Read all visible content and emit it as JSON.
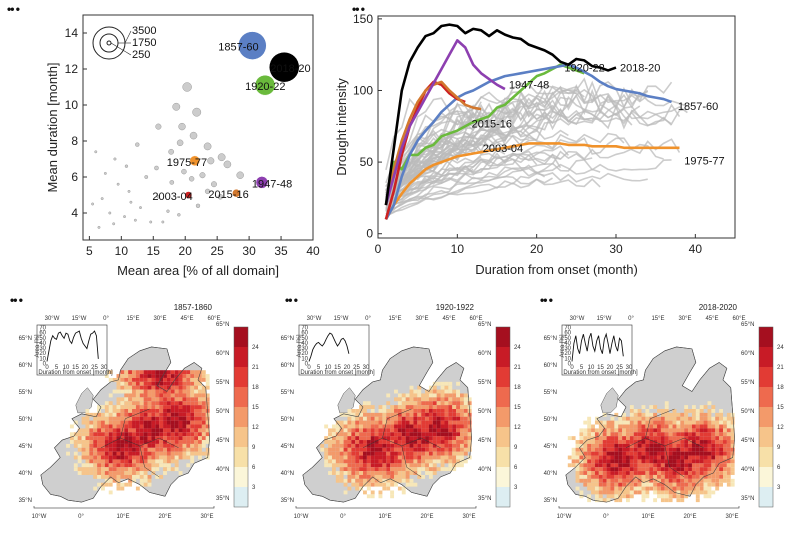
{
  "panel_labels": [
    "•• •",
    "•• •",
    "•• •",
    "•• •",
    "•• •"
  ],
  "chart_data": [
    {
      "type": "scatter",
      "xlabel": "Mean area [% of all domain]",
      "ylabel": "Mean duration [month]",
      "xlim": [
        4,
        40
      ],
      "ylim": [
        2.5,
        15
      ],
      "xticks": [
        "5",
        "10",
        "15",
        "20",
        "25",
        "30",
        "35",
        "40"
      ],
      "yticks": [
        "4",
        "6",
        "8",
        "10",
        "12",
        "14"
      ],
      "size_legend": [
        "3500",
        "1750",
        "250"
      ],
      "highlighted": [
        {
          "label": "1857-60",
          "x": 30.5,
          "y": 13.3,
          "color": "#5b7fc4"
        },
        {
          "label": "2018-20",
          "x": 35.5,
          "y": 12.1,
          "color": "#000000"
        },
        {
          "label": "1920-22",
          "x": 32.5,
          "y": 11.1,
          "color": "#6aba3c"
        },
        {
          "label": "1975-77",
          "x": 21.5,
          "y": 6.9,
          "color": "#f0922b"
        },
        {
          "label": "1947-48",
          "x": 32.0,
          "y": 5.7,
          "color": "#8d3fb0"
        },
        {
          "label": "2003-04",
          "x": 20.5,
          "y": 5.0,
          "color": "#cc2222"
        },
        {
          "label": "2015-16",
          "x": 28.0,
          "y": 5.1,
          "color": "#d2782e"
        }
      ],
      "background_points": [
        {
          "x": 20.3,
          "y": 11.0
        },
        {
          "x": 21.8,
          "y": 9.6
        },
        {
          "x": 19.5,
          "y": 8.8
        },
        {
          "x": 21.3,
          "y": 8.3
        },
        {
          "x": 19.2,
          "y": 7.9
        },
        {
          "x": 23.5,
          "y": 7.7
        },
        {
          "x": 17.8,
          "y": 7.4
        },
        {
          "x": 25.7,
          "y": 7.1
        },
        {
          "x": 19.8,
          "y": 6.3
        },
        {
          "x": 22.7,
          "y": 6.1
        },
        {
          "x": 28.6,
          "y": 6.1
        },
        {
          "x": 24.5,
          "y": 5.6
        },
        {
          "x": 15.8,
          "y": 8.8
        },
        {
          "x": 15.5,
          "y": 6.5
        },
        {
          "x": 13.9,
          "y": 6.0
        },
        {
          "x": 17.9,
          "y": 5.7
        },
        {
          "x": 21.0,
          "y": 5.9
        },
        {
          "x": 23.5,
          "y": 5.2
        },
        {
          "x": 25.5,
          "y": 4.9
        },
        {
          "x": 12.5,
          "y": 7.8
        },
        {
          "x": 11.2,
          "y": 5.2
        },
        {
          "x": 13.0,
          "y": 4.3
        },
        {
          "x": 15.8,
          "y": 4.9
        },
        {
          "x": 17.3,
          "y": 4.1
        },
        {
          "x": 19.0,
          "y": 3.9
        },
        {
          "x": 8.2,
          "y": 4.0
        },
        {
          "x": 9.5,
          "y": 5.6
        },
        {
          "x": 10.5,
          "y": 3.8
        },
        {
          "x": 7.0,
          "y": 4.8
        },
        {
          "x": 6.5,
          "y": 3.2
        },
        {
          "x": 8.8,
          "y": 3.4
        },
        {
          "x": 12.2,
          "y": 3.6
        },
        {
          "x": 14.6,
          "y": 3.5
        },
        {
          "x": 16.5,
          "y": 3.5
        },
        {
          "x": 6.0,
          "y": 7.4
        },
        {
          "x": 7.5,
          "y": 6.2
        },
        {
          "x": 9.0,
          "y": 7.0
        },
        {
          "x": 10.8,
          "y": 6.6
        },
        {
          "x": 5.5,
          "y": 4.5
        },
        {
          "x": 11.5,
          "y": 4.6
        },
        {
          "x": 18.6,
          "y": 9.9
        },
        {
          "x": 24.0,
          "y": 6.9
        },
        {
          "x": 22.0,
          "y": 4.4
        },
        {
          "x": 26.6,
          "y": 6.7
        }
      ]
    },
    {
      "type": "line",
      "xlabel": "Duration from onset (month)",
      "ylabel": "Drought intensity",
      "xlim": [
        0,
        45
      ],
      "ylim": [
        -3,
        152
      ],
      "xticks": [
        "0",
        "10",
        "20",
        "30",
        "40"
      ],
      "yticks": [
        "0",
        "50",
        "100",
        "150"
      ],
      "series": [
        {
          "name": "2018-20",
          "color": "#000000",
          "x": [
            1,
            2,
            3,
            4,
            5,
            6,
            7,
            8,
            9,
            10,
            11,
            12,
            13,
            14,
            15,
            16,
            17,
            18,
            19,
            20,
            21,
            22,
            23,
            24,
            25,
            26,
            27,
            28,
            29,
            30
          ],
          "y": [
            20,
            60,
            100,
            120,
            130,
            138,
            140,
            145,
            146,
            145,
            140,
            143,
            142,
            138,
            142,
            139,
            137,
            136,
            132,
            130,
            128,
            125,
            120,
            118,
            122,
            121,
            117,
            116,
            114,
            116
          ]
        },
        {
          "name": "1857-60",
          "color": "#5b7fc4",
          "x": [
            1,
            2,
            3,
            4,
            5,
            6,
            7,
            8,
            9,
            10,
            11,
            12,
            13,
            14,
            15,
            16,
            17,
            18,
            19,
            20,
            21,
            22,
            23,
            24,
            25,
            26,
            27,
            28,
            29,
            30,
            31,
            32,
            33,
            34,
            35,
            36,
            37
          ],
          "y": [
            10,
            20,
            40,
            55,
            65,
            72,
            78,
            85,
            90,
            95,
            98,
            100,
            103,
            106,
            108,
            110,
            111,
            112,
            113,
            114,
            115,
            116,
            117,
            118,
            116,
            113,
            110,
            106,
            103,
            101,
            100,
            99,
            98,
            96,
            95,
            94,
            92
          ]
        },
        {
          "name": "1920-22",
          "color": "#6aba3c",
          "x": [
            1,
            2,
            3,
            4,
            5,
            6,
            7,
            8,
            9,
            10,
            11,
            12,
            13,
            14,
            15,
            16,
            17,
            18,
            19,
            20,
            21,
            22,
            23,
            24,
            25,
            26
          ],
          "y": [
            20,
            50,
            45,
            55,
            55,
            60,
            62,
            68,
            70,
            72,
            75,
            78,
            80,
            82,
            88,
            90,
            95,
            100,
            105,
            110,
            112,
            115,
            118,
            116,
            114,
            112
          ]
        },
        {
          "name": "1947-48",
          "color": "#8d3fb0",
          "x": [
            1,
            2,
            3,
            4,
            5,
            6,
            7,
            8,
            9,
            10,
            11,
            12,
            13,
            14,
            15,
            16
          ],
          "y": [
            20,
            40,
            60,
            75,
            85,
            95,
            105,
            115,
            125,
            135,
            130,
            118,
            112,
            108,
            104,
            101
          ]
        },
        {
          "name": "2015-16",
          "color": "#d2782e",
          "x": [
            1,
            2,
            3,
            4,
            5,
            6,
            7,
            8,
            9,
            10,
            11,
            12,
            13
          ],
          "y": [
            20,
            45,
            65,
            80,
            92,
            100,
            104,
            106,
            100,
            95,
            90,
            88,
            87
          ]
        },
        {
          "name": "2003-04",
          "color": "#cc2222",
          "x": [
            1,
            2,
            3,
            4,
            5,
            6,
            7,
            8,
            9,
            10,
            11
          ],
          "y": [
            10,
            30,
            55,
            75,
            88,
            100,
            106,
            104,
            98,
            94,
            92
          ]
        },
        {
          "name": "1975-77",
          "color": "#f0922b",
          "x": [
            1,
            2,
            3,
            4,
            5,
            6,
            7,
            8,
            9,
            10,
            11,
            12,
            13,
            14,
            15,
            16,
            17,
            18,
            19,
            20,
            21,
            22,
            23,
            24,
            25,
            26,
            27,
            28,
            29,
            30,
            31,
            32,
            33,
            34,
            35,
            36,
            37,
            38
          ],
          "y": [
            10,
            20,
            28,
            35,
            40,
            45,
            48,
            50,
            52,
            54,
            55,
            56,
            57,
            58,
            59,
            60,
            61,
            62,
            63,
            63,
            63,
            63,
            63,
            62,
            62,
            62,
            61,
            61,
            61,
            61,
            60,
            60,
            60,
            60,
            60,
            60,
            60,
            60
          ]
        }
      ]
    },
    {
      "type": "heatmap",
      "title": "1857-1860",
      "inset_xlabel": "Duration from onset [month]",
      "inset_ylabel": "Area [%]",
      "inset_xticks": [
        "0",
        "5",
        "10",
        "15",
        "20",
        "25",
        "30"
      ],
      "inset_yticks": [
        "0",
        "10",
        "20",
        "30",
        "40",
        "50",
        "60",
        "70"
      ],
      "inset_series": [
        5,
        25,
        45,
        55,
        50,
        48,
        60,
        62,
        55,
        50,
        60,
        58,
        45,
        40,
        52,
        60,
        62,
        64,
        50,
        40,
        35,
        30,
        45,
        58,
        60,
        64,
        55,
        10
      ],
      "colorbar": [
        "3",
        "6",
        "9",
        "12",
        "15",
        "18",
        "21",
        "24"
      ],
      "lon_top": [
        "30°W",
        "15°W",
        "0°",
        "15°E",
        "30°E",
        "45°E",
        "60°E"
      ],
      "lon_bottom": [
        "10°W",
        "0°",
        "10°E",
        "20°E",
        "30°E"
      ],
      "lat_left": [
        "65°N",
        "60°N",
        "55°N",
        "50°N",
        "45°N",
        "40°N",
        "35°N"
      ],
      "lat_right": [
        "65°N",
        "60°N",
        "55°N",
        "50°N",
        "45°N",
        "40°N",
        "35°N"
      ]
    },
    {
      "type": "heatmap",
      "title": "1920-1922",
      "inset_xlabel": "Duration from onset [month]",
      "inset_ylabel": "Area [%]",
      "inset_xticks": [
        "0",
        "5",
        "10",
        "15",
        "20",
        "25",
        "30"
      ],
      "inset_yticks": [
        "0",
        "10",
        "20",
        "30",
        "40",
        "50",
        "60",
        "70"
      ],
      "inset_series": [
        5,
        15,
        28,
        35,
        40,
        42,
        38,
        35,
        40,
        48,
        55,
        60,
        58,
        50,
        42,
        35,
        40,
        48,
        50,
        45,
        35,
        20
      ],
      "colorbar": [
        "3",
        "6",
        "9",
        "12",
        "15",
        "18",
        "21",
        "24"
      ],
      "lon_top": [
        "30°W",
        "15°W",
        "0°",
        "15°E",
        "30°E",
        "45°E",
        "60°E"
      ],
      "lon_bottom": [
        "10°W",
        "0°",
        "10°E",
        "20°E",
        "30°E"
      ],
      "lat_left": [
        "65°N",
        "60°N",
        "55°N",
        "50°N",
        "45°N",
        "40°N",
        "35°N"
      ],
      "lat_right": [
        "65°N",
        "60°N",
        "55°N",
        "50°N",
        "45°N",
        "40°N",
        "35°N"
      ]
    },
    {
      "type": "heatmap",
      "title": "2018-2020",
      "inset_xlabel": "Duration from onset [month]",
      "inset_ylabel": "Area [%]",
      "inset_xticks": [
        "0",
        "5",
        "10",
        "15",
        "20",
        "25",
        "30"
      ],
      "inset_yticks": [
        "0",
        "10",
        "20",
        "30",
        "40",
        "50",
        "60",
        "70"
      ],
      "inset_series": [
        5,
        40,
        55,
        30,
        20,
        45,
        58,
        40,
        25,
        50,
        60,
        35,
        25,
        45,
        55,
        30,
        20,
        48,
        58,
        40,
        20,
        40,
        55,
        35,
        25,
        50,
        45,
        15
      ],
      "colorbar": [
        "3",
        "6",
        "9",
        "12",
        "15",
        "18",
        "21",
        "24"
      ],
      "lon_top": [
        "30°W",
        "15°W",
        "0°",
        "15°E",
        "30°E",
        "45°E",
        "60°E"
      ],
      "lon_bottom": [
        "10°W",
        "0°",
        "10°E",
        "20°E",
        "30°E"
      ],
      "lat_left": [
        "65°N",
        "60°N",
        "55°N",
        "50°N",
        "45°N",
        "40°N",
        "35°N"
      ],
      "lat_right": [
        "65°N",
        "60°N",
        "55°N",
        "50°N",
        "45°N",
        "40°N",
        "35°N"
      ]
    }
  ]
}
